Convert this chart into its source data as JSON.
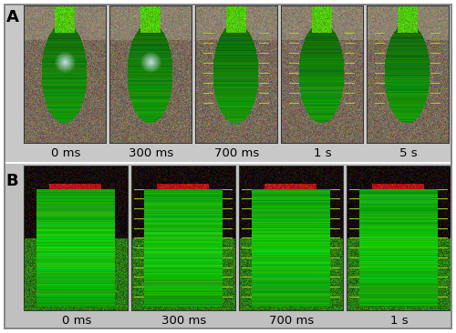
{
  "figure_bg": "#ffffff",
  "panel_A_label": "A",
  "panel_B_label": "B",
  "row_A_times": [
    "0 ms",
    "300 ms",
    "700 ms",
    "1 s",
    "5 s"
  ],
  "row_B_times": [
    "0 ms",
    "300 ms",
    "700 ms",
    "1 s"
  ],
  "label_fontsize": 13,
  "time_fontsize": 9.5,
  "label_fontweight": "bold",
  "panel_A_ncols": 5,
  "panel_B_ncols": 4,
  "figwidth": 5.0,
  "figheight": 3.66,
  "dpi": 100,
  "outer_border_lw": 1.5,
  "outer_border_color": "#888888",
  "separator_color": "#444444",
  "time_label_color": "#000000",
  "bg_row_A": "#c8c8c8",
  "bg_row_B": "#c0c0c0",
  "photo_border_color": "#222222",
  "photo_border_lw": 0.5,
  "row_A_photo_bg": "#7a7060",
  "row_A_plant_dark": "#2a5010",
  "row_A_plant_bright": "#88cc10",
  "row_A_plant_mid": "#558820",
  "row_B_photo_bg_dark": "#151010",
  "row_B_plant_bright": "#55cc10",
  "row_B_red_accent": "#cc2020",
  "white_separator_color": "#ffffff"
}
